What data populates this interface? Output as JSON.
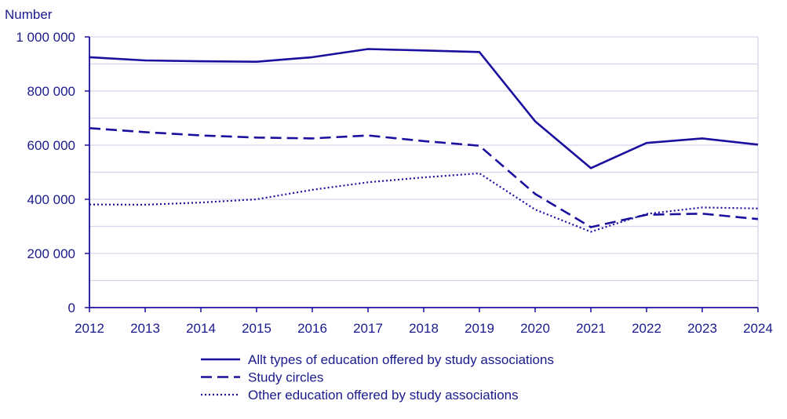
{
  "chart_data": {
    "type": "line",
    "title": "",
    "xlabel": "",
    "ylabel": "Number",
    "x": [
      "2012",
      "2013",
      "2014",
      "2015",
      "2016",
      "2017",
      "2018",
      "2019",
      "2020",
      "2021",
      "2022",
      "2023",
      "2024"
    ],
    "ylim": [
      0,
      1000000
    ],
    "yticks": [
      0,
      200000,
      400000,
      600000,
      800000,
      1000000
    ],
    "ytick_labels": [
      "0",
      "200 000",
      "400 000",
      "600 000",
      "800 000",
      "1 000 000"
    ],
    "grid": true,
    "legend_position": "bottom",
    "series": [
      {
        "name": "Allt types of education offered by study associations",
        "style": "solid",
        "values": [
          925000,
          913000,
          910000,
          908000,
          925000,
          955000,
          950000,
          944000,
          688000,
          515000,
          608000,
          625000,
          602000
        ]
      },
      {
        "name": "Study circles",
        "style": "dashed",
        "values": [
          663000,
          648000,
          636000,
          628000,
          625000,
          636000,
          615000,
          598000,
          420000,
          297000,
          343000,
          347000,
          327000
        ]
      },
      {
        "name": "Other education offered by study associations",
        "style": "dotted",
        "values": [
          381000,
          380000,
          388000,
          400000,
          435000,
          463000,
          481000,
          496000,
          362000,
          280000,
          346000,
          370000,
          366000
        ]
      }
    ]
  },
  "colors": {
    "line": "#1a0f9e",
    "axis_text": "#1a1a8c",
    "grid": "#d6d6ea"
  }
}
